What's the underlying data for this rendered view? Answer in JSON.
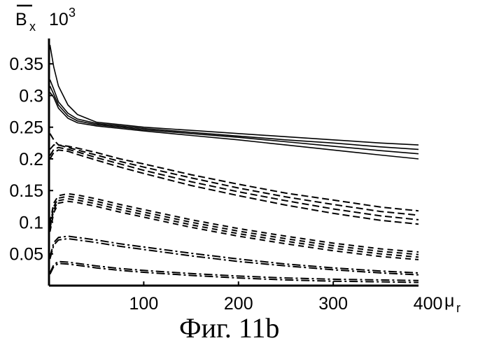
{
  "chart_data": {
    "type": "line",
    "title": "",
    "ylabel": {
      "symbol": "B",
      "subscript": "x",
      "multiplier": "10",
      "exponent": "3"
    },
    "xlabel": {
      "symbol": "μ",
      "subscript": "r"
    },
    "caption": "Фиг. 11b",
    "xlim": [
      0,
      390
    ],
    "ylim": [
      0,
      0.39
    ],
    "xticks": [
      100,
      200,
      300,
      400
    ],
    "xtick_labels": [
      "100",
      "200",
      "300",
      "400"
    ],
    "yticks": [
      0.05,
      0.1,
      0.15,
      0.2,
      0.25,
      0.3,
      0.35
    ],
    "ytick_labels": [
      "0.05",
      "0.1",
      "0.15",
      "0.2",
      "0.25",
      "0.3",
      "0.35"
    ],
    "grid": false,
    "series": [
      {
        "style": "solid",
        "x": [
          1,
          5,
          10,
          20,
          30,
          50,
          75,
          100,
          150,
          200,
          250,
          300,
          350,
          390
        ],
        "y": [
          0.38,
          0.345,
          0.315,
          0.285,
          0.27,
          0.258,
          0.254,
          0.25,
          0.245,
          0.24,
          0.235,
          0.23,
          0.225,
          0.222
        ]
      },
      {
        "style": "solid",
        "x": [
          1,
          5,
          10,
          20,
          30,
          50,
          75,
          100,
          150,
          200,
          250,
          300,
          350,
          390
        ],
        "y": [
          0.325,
          0.31,
          0.29,
          0.272,
          0.263,
          0.256,
          0.252,
          0.248,
          0.242,
          0.236,
          0.23,
          0.225,
          0.219,
          0.215
        ]
      },
      {
        "style": "solid",
        "x": [
          1,
          5,
          10,
          20,
          30,
          50,
          75,
          100,
          150,
          200,
          250,
          300,
          350,
          390
        ],
        "y": [
          0.315,
          0.302,
          0.285,
          0.268,
          0.26,
          0.254,
          0.25,
          0.246,
          0.24,
          0.234,
          0.227,
          0.22,
          0.213,
          0.208
        ]
      },
      {
        "style": "solid",
        "x": [
          1,
          5,
          10,
          20,
          30,
          50,
          75,
          100,
          150,
          200,
          250,
          300,
          350,
          390
        ],
        "y": [
          0.305,
          0.297,
          0.28,
          0.264,
          0.257,
          0.252,
          0.248,
          0.244,
          0.237,
          0.23,
          0.222,
          0.214,
          0.206,
          0.2
        ]
      },
      {
        "style": "dashed",
        "x": [
          1,
          5,
          10,
          20,
          30,
          50,
          75,
          100,
          150,
          200,
          250,
          300,
          350,
          390
        ],
        "y": [
          0.24,
          0.23,
          0.222,
          0.22,
          0.217,
          0.21,
          0.2,
          0.192,
          0.175,
          0.16,
          0.146,
          0.135,
          0.124,
          0.118
        ]
      },
      {
        "style": "dashed",
        "x": [
          1,
          5,
          10,
          20,
          30,
          50,
          75,
          100,
          150,
          200,
          250,
          300,
          350,
          390
        ],
        "y": [
          0.215,
          0.222,
          0.222,
          0.218,
          0.214,
          0.206,
          0.196,
          0.187,
          0.17,
          0.154,
          0.14,
          0.128,
          0.117,
          0.111
        ]
      },
      {
        "style": "dashed",
        "x": [
          1,
          5,
          10,
          20,
          30,
          50,
          75,
          100,
          150,
          200,
          250,
          300,
          350,
          390
        ],
        "y": [
          0.205,
          0.215,
          0.218,
          0.215,
          0.211,
          0.202,
          0.192,
          0.182,
          0.164,
          0.148,
          0.134,
          0.121,
          0.11,
          0.104
        ]
      },
      {
        "style": "dashed",
        "x": [
          1,
          5,
          10,
          20,
          30,
          50,
          75,
          100,
          150,
          200,
          250,
          300,
          350,
          390
        ],
        "y": [
          0.2,
          0.21,
          0.214,
          0.212,
          0.207,
          0.198,
          0.187,
          0.177,
          0.158,
          0.142,
          0.127,
          0.114,
          0.103,
          0.097
        ]
      },
      {
        "style": "dense-dashed",
        "x": [
          1,
          5,
          10,
          20,
          30,
          50,
          75,
          100,
          150,
          200,
          250,
          300,
          350,
          390
        ],
        "y": [
          0.1,
          0.13,
          0.142,
          0.145,
          0.143,
          0.137,
          0.128,
          0.12,
          0.104,
          0.09,
          0.078,
          0.067,
          0.058,
          0.053
        ]
      },
      {
        "style": "dense-dashed",
        "x": [
          1,
          5,
          10,
          20,
          30,
          50,
          75,
          100,
          150,
          200,
          250,
          300,
          350,
          390
        ],
        "y": [
          0.095,
          0.125,
          0.138,
          0.141,
          0.139,
          0.133,
          0.124,
          0.116,
          0.1,
          0.086,
          0.074,
          0.063,
          0.054,
          0.049
        ]
      },
      {
        "style": "dense-dashed",
        "x": [
          1,
          5,
          10,
          20,
          30,
          50,
          75,
          100,
          150,
          200,
          250,
          300,
          350,
          390
        ],
        "y": [
          0.09,
          0.12,
          0.134,
          0.137,
          0.135,
          0.129,
          0.12,
          0.112,
          0.096,
          0.082,
          0.07,
          0.059,
          0.05,
          0.045
        ]
      },
      {
        "style": "dense-dashed",
        "x": [
          1,
          5,
          10,
          20,
          30,
          50,
          75,
          100,
          150,
          200,
          250,
          300,
          350,
          390
        ],
        "y": [
          0.085,
          0.115,
          0.13,
          0.133,
          0.131,
          0.125,
          0.116,
          0.108,
          0.092,
          0.078,
          0.066,
          0.055,
          0.046,
          0.041
        ]
      },
      {
        "style": "dash-dot",
        "x": [
          1,
          5,
          10,
          20,
          30,
          50,
          75,
          100,
          150,
          200,
          250,
          300,
          350,
          390
        ],
        "y": [
          0.045,
          0.068,
          0.076,
          0.078,
          0.076,
          0.072,
          0.066,
          0.061,
          0.051,
          0.042,
          0.034,
          0.028,
          0.023,
          0.02
        ]
      },
      {
        "style": "dash-dot",
        "x": [
          1,
          5,
          10,
          20,
          30,
          50,
          75,
          100,
          150,
          200,
          250,
          300,
          350,
          390
        ],
        "y": [
          0.042,
          0.064,
          0.072,
          0.074,
          0.072,
          0.068,
          0.062,
          0.057,
          0.047,
          0.038,
          0.031,
          0.025,
          0.02,
          0.017
        ]
      },
      {
        "style": "dash-dot",
        "x": [
          1,
          5,
          10,
          20,
          30,
          50,
          75,
          100,
          150,
          200,
          250,
          300,
          350,
          390
        ],
        "y": [
          0.02,
          0.033,
          0.038,
          0.037,
          0.035,
          0.031,
          0.027,
          0.024,
          0.019,
          0.015,
          0.012,
          0.01,
          0.009,
          0.008
        ]
      },
      {
        "style": "dash-dot",
        "x": [
          1,
          5,
          10,
          20,
          30,
          50,
          75,
          100,
          150,
          200,
          250,
          300,
          350,
          390
        ],
        "y": [
          0.018,
          0.03,
          0.035,
          0.034,
          0.032,
          0.028,
          0.024,
          0.021,
          0.016,
          0.012,
          0.009,
          0.007,
          0.006,
          0.005
        ]
      }
    ]
  }
}
